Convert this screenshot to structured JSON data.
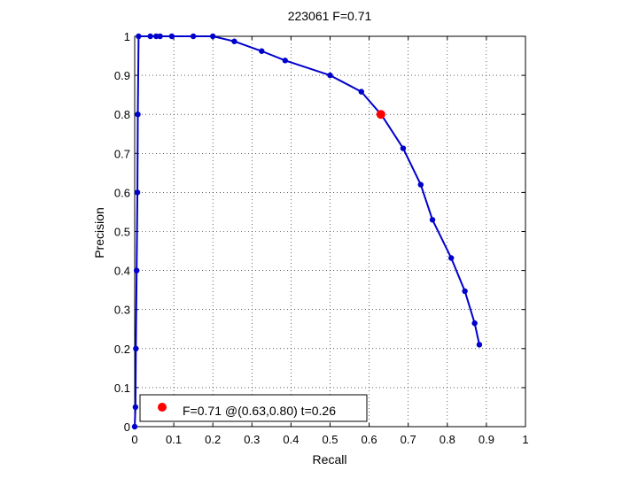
{
  "chart_data": {
    "type": "line",
    "title": "223061 F=0.71",
    "xlabel": "Recall",
    "ylabel": "Precision",
    "xlim": [
      0,
      1
    ],
    "ylim": [
      0,
      1
    ],
    "xticks": [
      "0",
      "0.1",
      "0.2",
      "0.3",
      "0.4",
      "0.5",
      "0.6",
      "0.7",
      "0.8",
      "0.9",
      "1"
    ],
    "yticks": [
      "0",
      "0.1",
      "0.2",
      "0.3",
      "0.4",
      "0.5",
      "0.6",
      "0.7",
      "0.8",
      "0.9",
      "1"
    ],
    "grid": true,
    "legend_position": "bottom-left",
    "series": [
      {
        "color": "#0000cc",
        "marker": "dot",
        "x": [
          0.0,
          0.002,
          0.003,
          0.005,
          0.007,
          0.008,
          0.01,
          0.04,
          0.055,
          0.065,
          0.095,
          0.15,
          0.2,
          0.255,
          0.325,
          0.385,
          0.5,
          0.58,
          0.632,
          0.687,
          0.732,
          0.762,
          0.81,
          0.845,
          0.87,
          0.882
        ],
        "y": [
          0.0,
          0.05,
          0.2,
          0.4,
          0.6,
          0.8,
          1.0,
          1.0,
          1.0,
          1.0,
          1.0,
          1.0,
          1.0,
          0.987,
          0.962,
          0.938,
          0.9,
          0.858,
          0.798,
          0.713,
          0.62,
          0.53,
          0.432,
          0.347,
          0.265,
          0.21
        ]
      }
    ],
    "highlight": {
      "x": 0.63,
      "y": 0.8,
      "color": "#ff0000",
      "label": "F=0.71 @(0.63,0.80) t=0.26"
    }
  }
}
